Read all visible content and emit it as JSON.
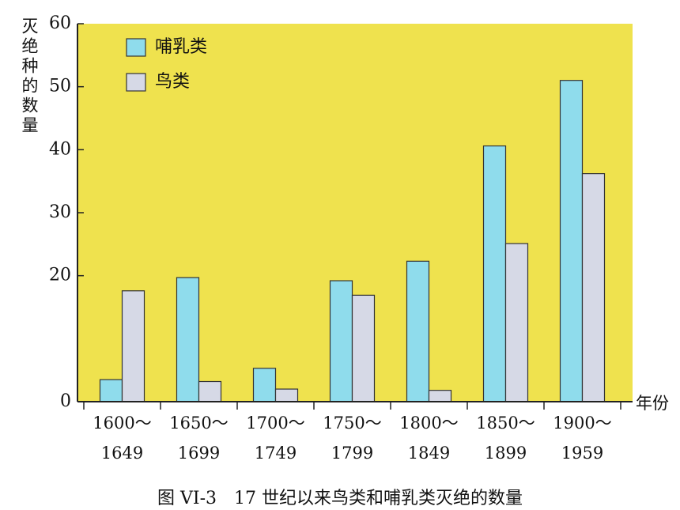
{
  "chart_data": {
    "type": "bar",
    "y_label": "灭绝种的数量",
    "x_label": "年份",
    "caption": "图 VI-3　17 世纪以来鸟类和哺乳类灭绝的数量",
    "categories": [
      "1600～\n1649",
      "1650～\n1699",
      "1700～\n1749",
      "1750～\n1799",
      "1800～\n1849",
      "1850～\n1899",
      "1900～\n1959"
    ],
    "series": [
      {
        "name": "哺乳类",
        "color": "#8fdcec",
        "values": [
          3.5,
          19.7,
          5.3,
          19.2,
          22.3,
          40.6,
          51
        ]
      },
      {
        "name": "鸟类",
        "color": "#d6d9e6",
        "values": [
          17.6,
          3.2,
          2,
          16.9,
          1.8,
          25.1,
          36.2
        ]
      }
    ],
    "ylim": [
      0,
      60
    ],
    "yticks": [
      0,
      20,
      30,
      40,
      50,
      60
    ],
    "background": "#efe24e",
    "legend": "top-left"
  }
}
